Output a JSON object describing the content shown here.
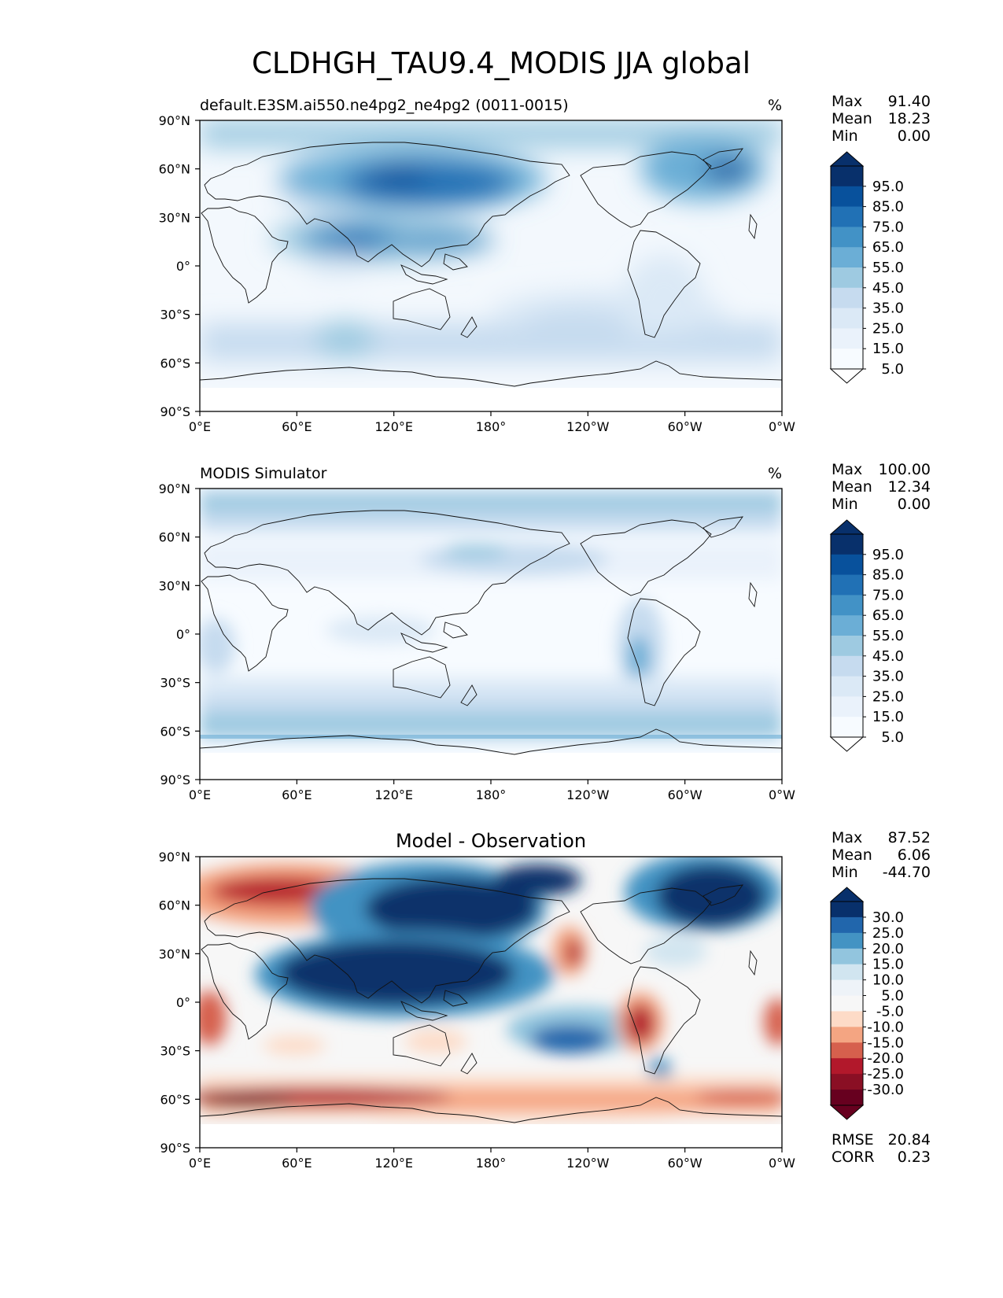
{
  "title": "CLDHGH_TAU9.4_MODIS JJA global",
  "axis_ticks": {
    "lon": [
      "0°E",
      "60°E",
      "120°E",
      "180°",
      "120°W",
      "60°W",
      "0°W"
    ],
    "lat": [
      "90°N",
      "60°N",
      "30°N",
      "0°",
      "30°S",
      "60°S",
      "90°S"
    ]
  },
  "stat_labels": {
    "max": "Max",
    "mean": "Mean",
    "min": "Min",
    "rmse": "RMSE",
    "corr": "CORR"
  },
  "panels": [
    {
      "left_title": "default.E3SM.ai550.ne4pg2_ne4pg2 (0011-0015)",
      "center_title": "",
      "units": "%",
      "stats": {
        "max": "91.40",
        "mean": "18.23",
        "min": "0.00"
      },
      "colorbar": {
        "labels": [
          "95.0",
          "85.0",
          "75.0",
          "65.0",
          "55.0",
          "45.0",
          "35.0",
          "25.0",
          "15.0",
          "5.0"
        ],
        "colors": [
          "#08306b",
          "#08519c",
          "#2171b5",
          "#4292c6",
          "#6baed6",
          "#9ecae1",
          "#c6dbef",
          "#dbe9f6",
          "#eaf2fb",
          "#f7fbff"
        ],
        "over": "#08306b",
        "under": "#ffffff"
      }
    },
    {
      "left_title": "MODIS Simulator",
      "center_title": "",
      "units": "%",
      "stats": {
        "max": "100.00",
        "mean": "12.34",
        "min": "0.00"
      },
      "colorbar": {
        "labels": [
          "95.0",
          "85.0",
          "75.0",
          "65.0",
          "55.0",
          "45.0",
          "35.0",
          "25.0",
          "15.0",
          "5.0"
        ],
        "colors": [
          "#08306b",
          "#08519c",
          "#2171b5",
          "#4292c6",
          "#6baed6",
          "#9ecae1",
          "#c6dbef",
          "#dbe9f6",
          "#eaf2fb",
          "#f7fbff"
        ],
        "over": "#08306b",
        "under": "#ffffff"
      }
    },
    {
      "left_title": "",
      "center_title": "Model - Observation",
      "units": "",
      "stats": {
        "max": "87.52",
        "mean": "6.06",
        "min": "-44.70",
        "rmse": "20.84",
        "corr": "0.23"
      },
      "colorbar": {
        "labels": [
          "30.0",
          "25.0",
          "20.0",
          "15.0",
          "10.0",
          "5.0",
          "-5.0",
          "-10.0",
          "-15.0",
          "-20.0",
          "-25.0",
          "-30.0"
        ],
        "colors": [
          "#08306b",
          "#2166ac",
          "#4393c3",
          "#92c5de",
          "#d1e5f0",
          "#eef3f8",
          "#f7f7f7",
          "#fddbc7",
          "#f4a582",
          "#d6604d",
          "#b2182b",
          "#8a0f24",
          "#67001f"
        ],
        "over": "#08306b",
        "under": "#67001f"
      }
    }
  ],
  "chart_data": {
    "type": "heatmap",
    "projection": "plate carree, global lon 0°E to 0°W, lat 90°S to 90°N",
    "variable": "CLDHGH_TAU9.4_MODIS",
    "season": "JJA",
    "units": "%",
    "xlim": [
      0,
      360
    ],
    "ylim": [
      -90,
      90
    ],
    "levels_fields": [
      5,
      15,
      25,
      35,
      45,
      55,
      65,
      75,
      85,
      95
    ],
    "levels_diff": [
      -30,
      -25,
      -20,
      -15,
      -10,
      -5,
      5,
      10,
      15,
      20,
      25,
      30
    ],
    "model": {
      "name": "default.E3SM.ai550.ne4pg2_ne4pg2 (0011-0015)",
      "max": 91.4,
      "mean": 18.23,
      "min": 0.0
    },
    "observation": {
      "name": "MODIS Simulator",
      "max": 100.0,
      "mean": 12.34,
      "min": 0.0
    },
    "difference": {
      "name": "Model - Observation",
      "max": 87.52,
      "mean": 6.06,
      "min": -44.7,
      "rmse": 20.84,
      "corr": 0.23
    }
  }
}
